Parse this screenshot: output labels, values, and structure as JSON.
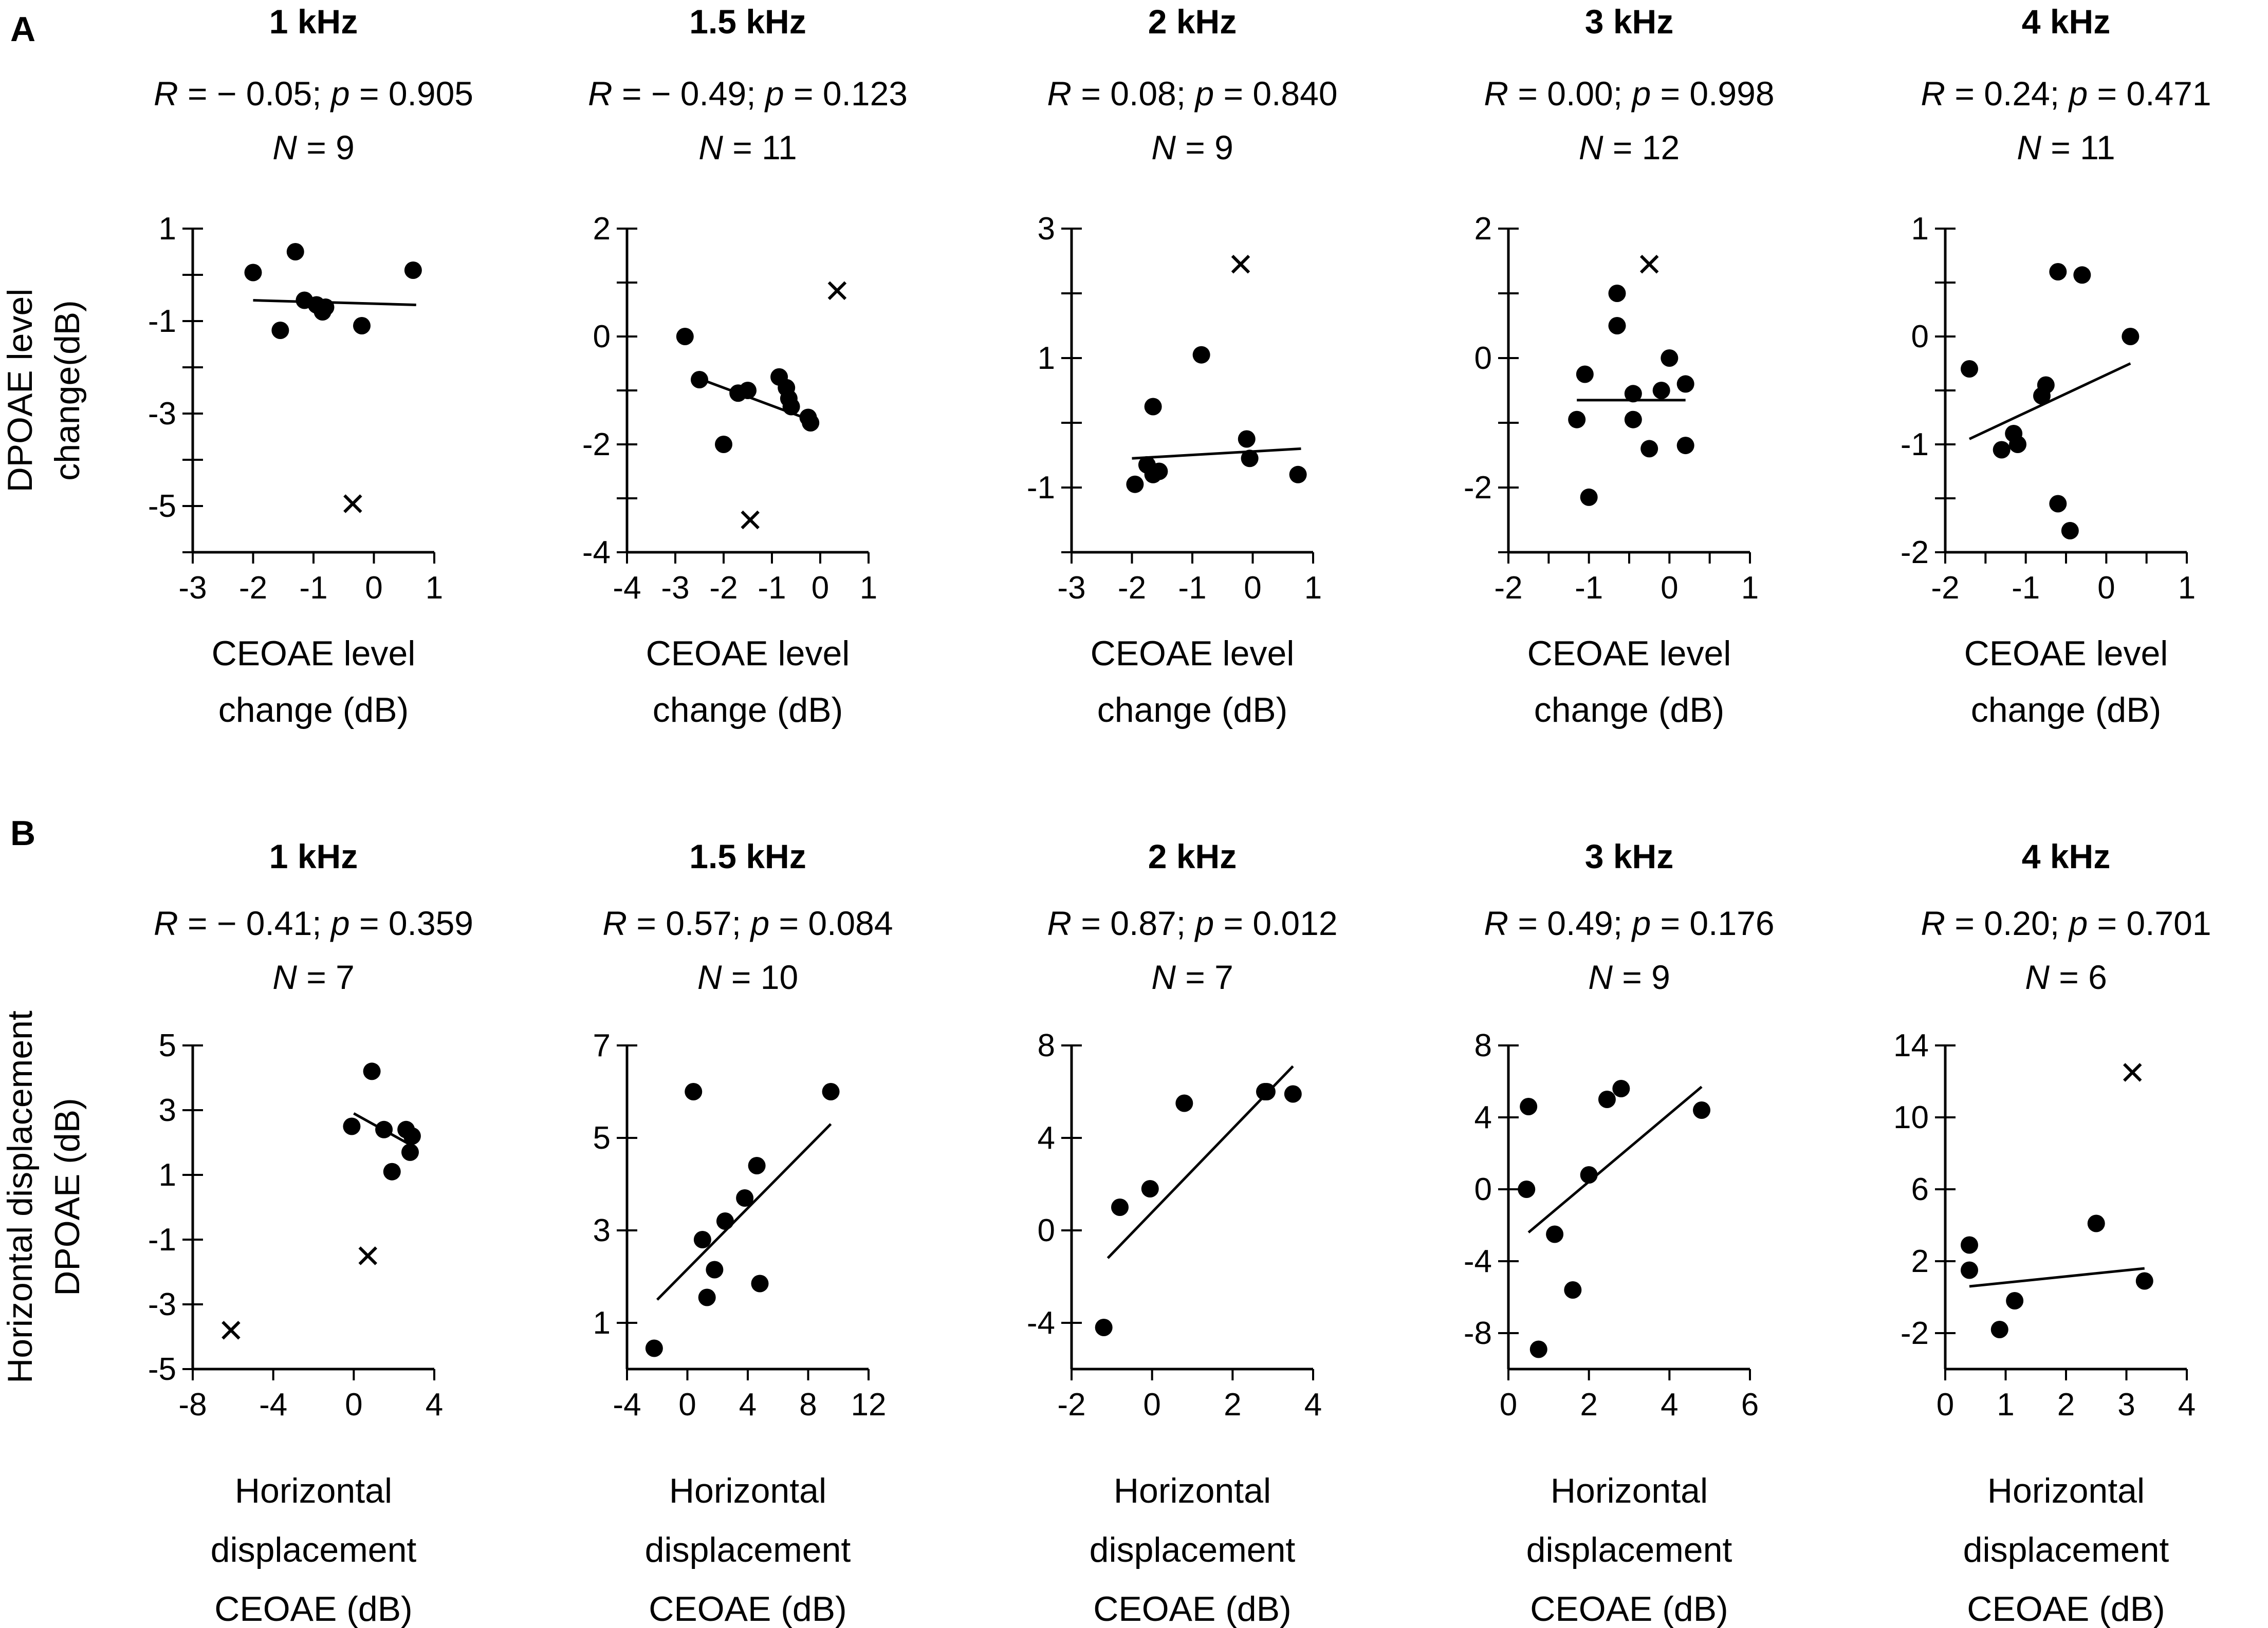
{
  "chart_data": {
    "panels": [
      {
        "label": "A",
        "ylabel_lines": [
          "DPOAE level",
          "change(dB)"
        ],
        "xlabel_lines": [
          "CEOAE level",
          "change (dB)"
        ],
        "charts": [
          {
            "type": "scatter",
            "title": "1 kHz",
            "stat_r": "R = − 0.05;",
            "stat_p": "p = 0.905",
            "stat_n": "N = 9",
            "xlim": [
              -3,
              1
            ],
            "xticks": [
              -3,
              -2,
              -1,
              0,
              1
            ],
            "xtick_labels": [
              "-3",
              "-2",
              "-1",
              "0",
              "1"
            ],
            "ylim": [
              -6,
              1
            ],
            "yticks": [
              -6,
              -5,
              -4,
              -3,
              -2,
              -1,
              0,
              1
            ],
            "ytick_labels": [
              "",
              "-5",
              "",
              "-3",
              "",
              "-1",
              "",
              "1"
            ],
            "points": [
              [
                -2.0,
                0.05
              ],
              [
                -1.55,
                -1.2
              ],
              [
                -1.3,
                0.5
              ],
              [
                -1.15,
                -0.55
              ],
              [
                -0.95,
                -0.65
              ],
              [
                -0.85,
                -0.8
              ],
              [
                -0.2,
                -1.1
              ],
              [
                -0.8,
                -0.7
              ],
              [
                0.65,
                0.1
              ]
            ],
            "outliers": [
              [
                -0.35,
                -4.95
              ]
            ],
            "fit": [
              [
                -2.0,
                -0.55
              ],
              [
                0.7,
                -0.65
              ]
            ]
          },
          {
            "type": "scatter",
            "title": "1.5 kHz",
            "stat_r": "R = − 0.49;",
            "stat_p": "p = 0.123",
            "stat_n": "N = 11",
            "xlim": [
              -4,
              1
            ],
            "xticks": [
              -4,
              -3,
              -2,
              -1,
              0,
              1
            ],
            "xtick_labels": [
              "-4",
              "-3",
              "-2",
              "-1",
              "0",
              "1"
            ],
            "ylim": [
              -4,
              2
            ],
            "yticks": [
              -4,
              -3,
              -2,
              -1,
              0,
              1,
              2
            ],
            "ytick_labels": [
              "-4",
              "",
              "-2",
              "",
              "0",
              "",
              "2"
            ],
            "points": [
              [
                -2.8,
                0.0
              ],
              [
                -2.5,
                -0.8
              ],
              [
                -1.7,
                -1.05
              ],
              [
                -1.5,
                -1.0
              ],
              [
                -2.0,
                -2.0
              ],
              [
                -0.85,
                -0.75
              ],
              [
                -0.7,
                -0.95
              ],
              [
                -0.65,
                -1.15
              ],
              [
                -0.6,
                -1.3
              ],
              [
                -0.25,
                -1.5
              ],
              [
                -0.2,
                -1.6
              ]
            ],
            "outliers": [
              [
                0.35,
                0.85
              ],
              [
                -1.45,
                -3.4
              ]
            ],
            "fit": [
              [
                -2.6,
                -0.75
              ],
              [
                -0.2,
                -1.55
              ]
            ]
          },
          {
            "type": "scatter",
            "title": "2 kHz",
            "stat_r": "R = 0.08;",
            "stat_p": "p = 0.840",
            "stat_n": "N = 9",
            "xlim": [
              -3,
              1
            ],
            "xticks": [
              -3,
              -2,
              -1,
              0,
              1
            ],
            "xtick_labels": [
              "-3",
              "-2",
              "-1",
              "0",
              "1"
            ],
            "ylim": [
              -2,
              3
            ],
            "yticks": [
              -2,
              -1,
              0,
              1,
              2,
              3
            ],
            "ytick_labels": [
              "",
              "-1",
              "",
              "1",
              "",
              "3"
            ],
            "points": [
              [
                -1.95,
                -0.95
              ],
              [
                -1.75,
                -0.65
              ],
              [
                -1.65,
                -0.8
              ],
              [
                -1.55,
                -0.75
              ],
              [
                -1.65,
                0.25
              ],
              [
                -0.85,
                1.05
              ],
              [
                -0.1,
                -0.25
              ],
              [
                -0.05,
                -0.55
              ],
              [
                0.75,
                -0.8
              ]
            ],
            "outliers": [
              [
                -0.2,
                2.45
              ]
            ],
            "fit": [
              [
                -2.0,
                -0.55
              ],
              [
                0.8,
                -0.4
              ]
            ]
          },
          {
            "type": "scatter",
            "title": "3 kHz",
            "stat_r": "R = 0.00;",
            "stat_p": "p = 0.998",
            "stat_n": "N = 12",
            "xlim": [
              -2,
              1
            ],
            "xticks": [
              -2,
              -1.5,
              -1,
              -0.5,
              0,
              0.5,
              1
            ],
            "xtick_labels": [
              "-2",
              "",
              "-1",
              "",
              "0",
              "",
              "1"
            ],
            "ylim": [
              -3,
              2
            ],
            "yticks": [
              -3,
              -2,
              -1,
              0,
              1,
              2
            ],
            "ytick_labels": [
              "",
              "-2",
              "",
              "0",
              "",
              "2"
            ],
            "points": [
              [
                -1.15,
                -0.95
              ],
              [
                -1.05,
                -0.25
              ],
              [
                -1.0,
                -2.15
              ],
              [
                -0.65,
                1.0
              ],
              [
                -0.65,
                0.5
              ],
              [
                -0.45,
                -0.55
              ],
              [
                -0.45,
                -0.95
              ],
              [
                -0.25,
                -1.4
              ],
              [
                -0.1,
                -0.5
              ],
              [
                0.0,
                0.0
              ],
              [
                0.2,
                -0.4
              ],
              [
                0.2,
                -1.35
              ]
            ],
            "outliers": [
              [
                -0.25,
                1.45
              ]
            ],
            "fit": [
              [
                -1.15,
                -0.65
              ],
              [
                0.2,
                -0.65
              ]
            ]
          },
          {
            "type": "scatter",
            "title": "4 kHz",
            "stat_r": "R = 0.24;",
            "stat_p": "p = 0.471",
            "stat_n": "N = 11",
            "xlim": [
              -2,
              1
            ],
            "xticks": [
              -2,
              -1.5,
              -1,
              -0.5,
              0,
              0.5,
              1
            ],
            "xtick_labels": [
              "-2",
              "",
              "-1",
              "",
              "0",
              "",
              "1"
            ],
            "ylim": [
              -2,
              1
            ],
            "yticks": [
              -2,
              -1.5,
              -1,
              -0.5,
              0,
              0.5,
              1
            ],
            "ytick_labels": [
              "-2",
              "",
              "-1",
              "",
              "0",
              "",
              "1"
            ],
            "points": [
              [
                -1.7,
                -0.3
              ],
              [
                -1.3,
                -1.05
              ],
              [
                -1.15,
                -0.9
              ],
              [
                -1.1,
                -1.0
              ],
              [
                -0.8,
                -0.55
              ],
              [
                -0.75,
                -0.45
              ],
              [
                -0.6,
                0.6
              ],
              [
                -0.6,
                -1.55
              ],
              [
                -0.45,
                -1.8
              ],
              [
                -0.3,
                0.57
              ],
              [
                0.3,
                0.0
              ]
            ],
            "outliers": [],
            "fit": [
              [
                -1.7,
                -0.95
              ],
              [
                0.3,
                -0.25
              ]
            ]
          }
        ]
      },
      {
        "label": "B",
        "ylabel_lines": [
          "Horizontal displacement",
          "DPOAE (dB)"
        ],
        "xlabel_lines": [
          "Horizontal",
          "displacement",
          "CEOAE (dB)"
        ],
        "charts": [
          {
            "type": "scatter",
            "title": "1 kHz",
            "stat_r": "R = − 0.41;",
            "stat_p": "p = 0.359",
            "stat_n": "N = 7",
            "xlim": [
              -8,
              4
            ],
            "xticks": [
              -8,
              -4,
              0,
              4
            ],
            "xtick_labels": [
              "-8",
              "-4",
              "0",
              "4"
            ],
            "ylim": [
              -5,
              5
            ],
            "yticks": [
              -5,
              -3,
              -1,
              1,
              3,
              5
            ],
            "ytick_labels": [
              "-5",
              "-3",
              "-1",
              "1",
              "3",
              "5"
            ],
            "points": [
              [
                -0.1,
                2.5
              ],
              [
                0.9,
                4.2
              ],
              [
                1.5,
                2.4
              ],
              [
                1.9,
                1.1
              ],
              [
                2.6,
                2.4
              ],
              [
                2.9,
                2.2
              ],
              [
                2.8,
                1.7
              ]
            ],
            "outliers": [
              [
                0.7,
                -1.5
              ],
              [
                -6.1,
                -3.8
              ]
            ],
            "fit": [
              [
                0.0,
                2.9
              ],
              [
                2.9,
                1.9
              ]
            ]
          },
          {
            "type": "scatter",
            "title": "1.5 kHz",
            "stat_r": "R = 0.57;",
            "stat_p": "p = 0.084",
            "stat_n": "N = 10",
            "xlim": [
              -4,
              12
            ],
            "xticks": [
              -4,
              0,
              4,
              8,
              12
            ],
            "xtick_labels": [
              "-4",
              "0",
              "4",
              "8",
              "12"
            ],
            "ylim": [
              0,
              7
            ],
            "yticks": [
              1,
              3,
              5,
              7
            ],
            "ytick_labels": [
              "1",
              "3",
              "5",
              "7"
            ],
            "points": [
              [
                -2.2,
                0.45
              ],
              [
                0.4,
                6.0
              ],
              [
                1.0,
                2.8
              ],
              [
                1.3,
                1.55
              ],
              [
                1.8,
                2.15
              ],
              [
                2.5,
                3.2
              ],
              [
                3.8,
                3.7
              ],
              [
                4.6,
                4.4
              ],
              [
                4.8,
                1.85
              ],
              [
                9.5,
                6.0
              ]
            ],
            "outliers": [],
            "fit": [
              [
                -2.0,
                1.5
              ],
              [
                9.5,
                5.3
              ]
            ]
          },
          {
            "type": "scatter",
            "title": "2 kHz",
            "stat_r": "R = 0.87;",
            "stat_p": "p = 0.012",
            "stat_n": "N = 7",
            "xlim": [
              -2,
              4
            ],
            "xticks": [
              -2,
              0,
              2,
              4
            ],
            "xtick_labels": [
              "-2",
              "0",
              "2",
              "4"
            ],
            "ylim": [
              -6,
              8
            ],
            "yticks": [
              -4,
              0,
              4,
              8
            ],
            "ytick_labels": [
              "-4",
              "0",
              "4",
              "8"
            ],
            "points": [
              [
                -1.2,
                -4.2
              ],
              [
                -0.8,
                1.0
              ],
              [
                -0.05,
                1.8
              ],
              [
                0.8,
                5.5
              ],
              [
                2.8,
                6.0
              ],
              [
                2.85,
                6.0
              ],
              [
                3.5,
                5.9
              ]
            ],
            "outliers": [],
            "fit": [
              [
                -1.1,
                -1.2
              ],
              [
                3.5,
                7.1
              ]
            ]
          },
          {
            "type": "scatter",
            "title": "3 kHz",
            "stat_r": "R = 0.49;",
            "stat_p": "p = 0.176",
            "stat_n": "N = 9",
            "xlim": [
              0,
              6
            ],
            "xticks": [
              0,
              2,
              4,
              6
            ],
            "xtick_labels": [
              "0",
              "2",
              "4",
              "6"
            ],
            "ylim": [
              -10,
              8
            ],
            "yticks": [
              -8,
              -4,
              0,
              4,
              8
            ],
            "ytick_labels": [
              "-8",
              "-4",
              "0",
              "4",
              "8"
            ],
            "points": [
              [
                0.45,
                0.0
              ],
              [
                0.5,
                4.6
              ],
              [
                0.75,
                -8.9
              ],
              [
                1.15,
                -2.5
              ],
              [
                1.6,
                -5.6
              ],
              [
                2.0,
                0.8
              ],
              [
                2.45,
                5.0
              ],
              [
                2.8,
                5.6
              ],
              [
                4.8,
                4.4
              ]
            ],
            "outliers": [],
            "fit": [
              [
                0.5,
                -2.4
              ],
              [
                4.8,
                5.7
              ]
            ]
          },
          {
            "type": "scatter",
            "title": "4 kHz",
            "stat_r": "R = 0.20;",
            "stat_p": "p = 0.701",
            "stat_n": "N = 6",
            "xlim": [
              0,
              4
            ],
            "xticks": [
              0,
              1,
              2,
              3,
              4
            ],
            "xtick_labels": [
              "0",
              "1",
              "2",
              "3",
              "4"
            ],
            "ylim": [
              -4,
              14
            ],
            "yticks": [
              -2,
              2,
              6,
              10,
              14
            ],
            "ytick_labels": [
              "-2",
              "2",
              "6",
              "10",
              "14"
            ],
            "points": [
              [
                0.4,
                2.9
              ],
              [
                0.4,
                1.5
              ],
              [
                0.9,
                -1.8
              ],
              [
                1.15,
                -0.2
              ],
              [
                2.5,
                4.1
              ],
              [
                3.3,
                0.9
              ]
            ],
            "outliers": [
              [
                3.1,
                12.5
              ]
            ],
            "fit": [
              [
                0.4,
                0.6
              ],
              [
                3.3,
                1.6
              ]
            ]
          }
        ]
      }
    ]
  }
}
